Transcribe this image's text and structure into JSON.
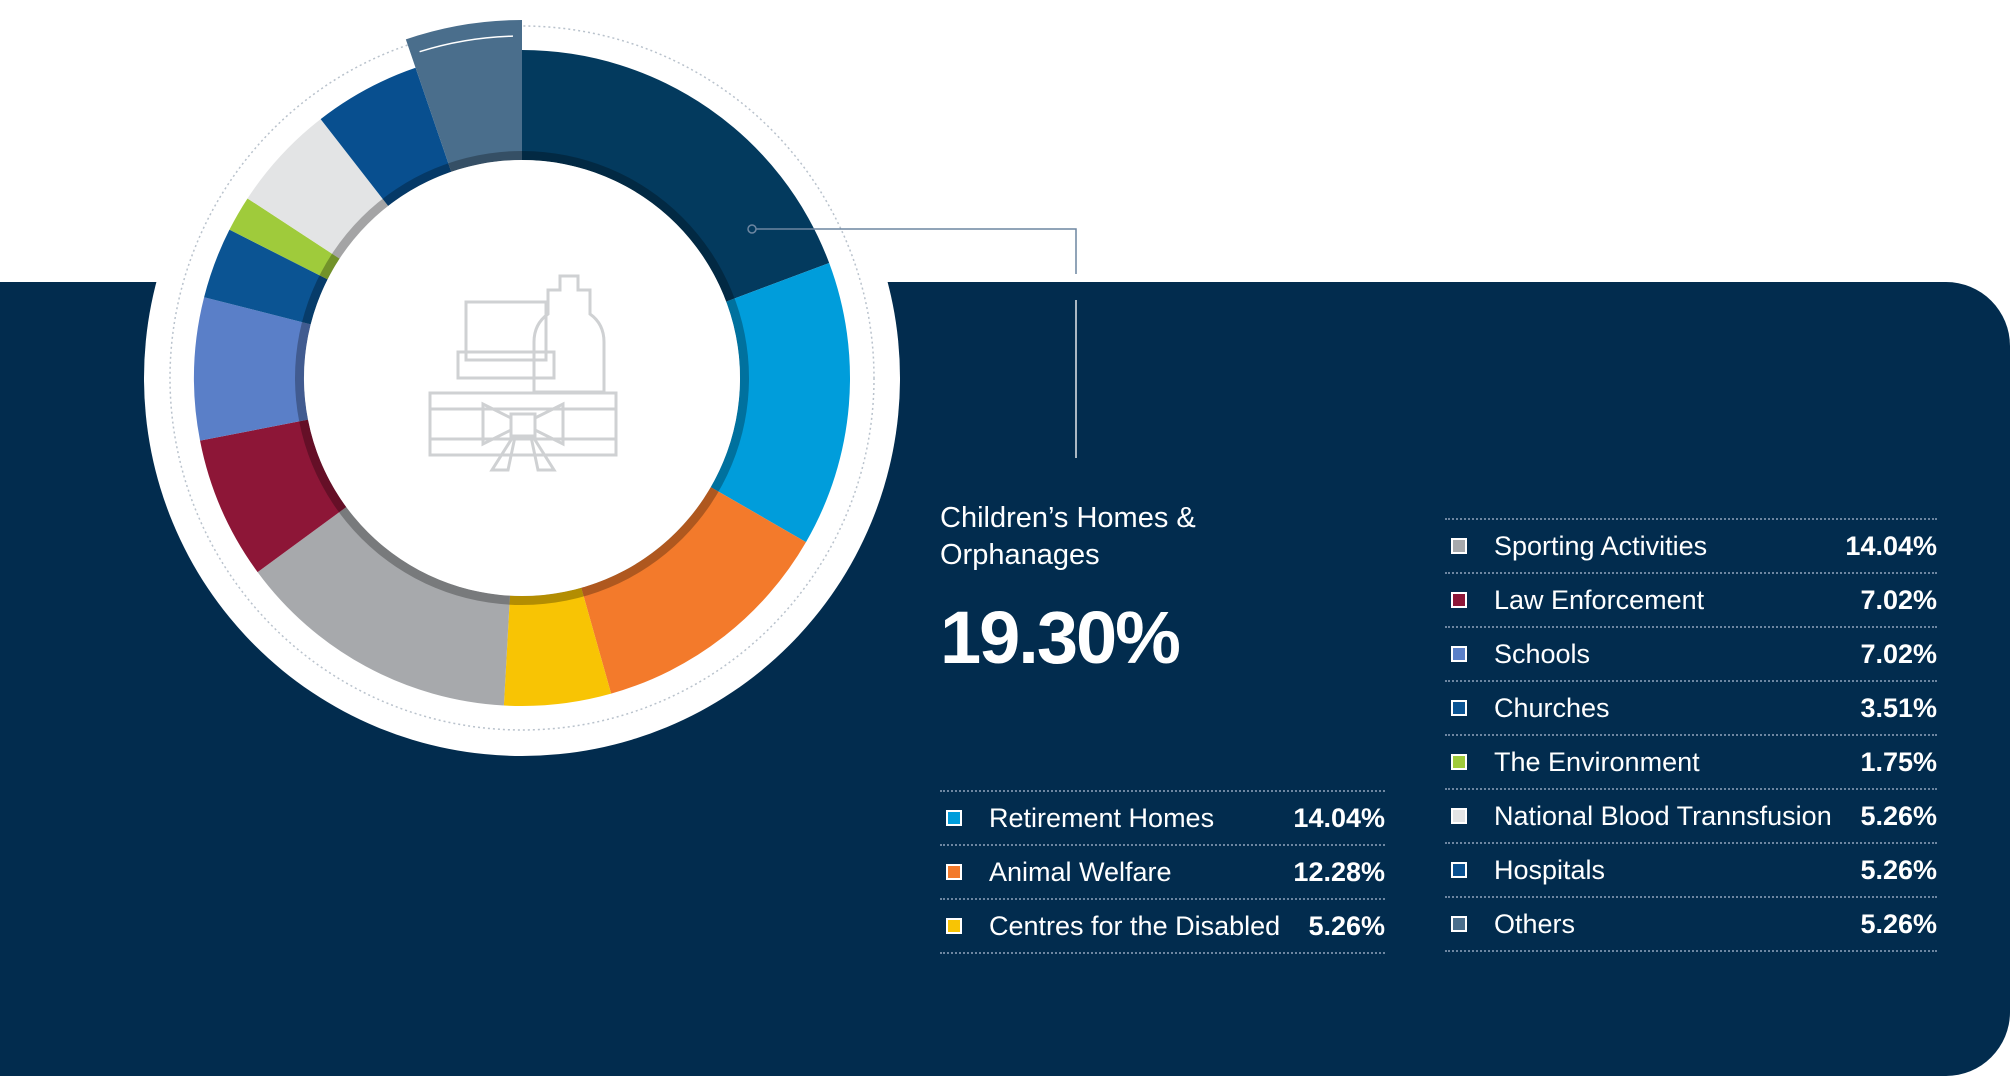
{
  "highlight": {
    "label": "Children’s Homes & Orphanages",
    "value": "19.30%"
  },
  "chart_data": {
    "type": "pie",
    "variant": "donut",
    "title": "",
    "slices": [
      {
        "label": "Children’s Homes & Orphanages",
        "value": 19.3,
        "display": "19.30%",
        "color": "#033a5e",
        "highlighted": true
      },
      {
        "label": "Retirement Homes",
        "value": 14.04,
        "display": "14.04%",
        "color": "#009ddb"
      },
      {
        "label": "Animal Welfare",
        "value": 12.28,
        "display": "12.28%",
        "color": "#f37a2b"
      },
      {
        "label": "Centres for the Disabled",
        "value": 5.26,
        "display": "5.26%",
        "color": "#f8c404"
      },
      {
        "label": "Sporting Activities",
        "value": 14.04,
        "display": "14.04%",
        "color": "#a7a9ac"
      },
      {
        "label": "Law Enforcement",
        "value": 7.02,
        "display": "7.02%",
        "color": "#8d1637"
      },
      {
        "label": "Schools",
        "value": 7.02,
        "display": "7.02%",
        "color": "#5a7fc8"
      },
      {
        "label": "Churches",
        "value": 3.51,
        "display": "3.51%",
        "color": "#0b5493"
      },
      {
        "label": "The Environment",
        "value": 1.75,
        "display": "1.75%",
        "color": "#9fcb3b"
      },
      {
        "label": "National Blood Trannsfusion",
        "value": 5.26,
        "display": "5.26%",
        "color": "#e3e4e5"
      },
      {
        "label": "Hospitals",
        "value": 5.26,
        "display": "5.26%",
        "color": "#084f8f"
      },
      {
        "label": "Others",
        "value": 5.26,
        "display": "5.26%",
        "color": "#4a6e8c"
      }
    ],
    "legend_left": [
      1,
      2,
      3
    ],
    "legend_right": [
      4,
      5,
      6,
      7,
      8,
      9,
      10,
      11
    ]
  }
}
